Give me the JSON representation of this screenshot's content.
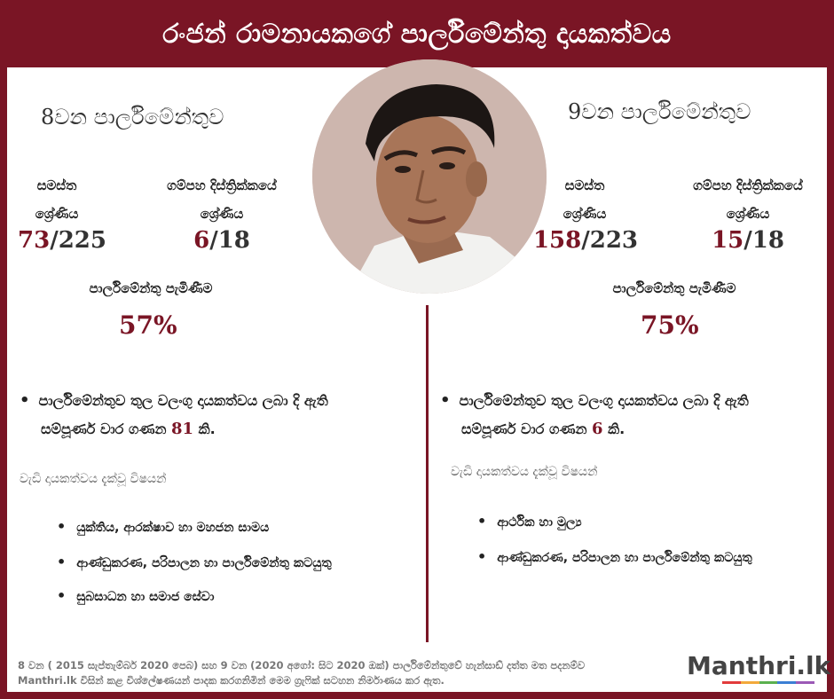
{
  "header": {
    "title": "රංජන් රාමනායකගේ පාර්ලිමේන්තු දායකත්වය"
  },
  "left": {
    "parliament": "8වන පාර්ලිමේන්තුව",
    "overall_label_1": "සමස්ත",
    "overall_label_2": "ශ්‍රේණිය",
    "overall_rank": "73",
    "overall_total": "/225",
    "district_label_1": "ගම්පහ දිස්ත්‍රික්කයේ",
    "district_label_2": "ශ්‍රේණිය",
    "district_rank": "6",
    "district_total": "/18",
    "attendance_label": "පාර්ලිමේන්තු පැමිණීම",
    "attendance": "57%",
    "contrib_text_1": "පාර්ලිමේන්තුව තුල වලංගු දායකත්වය ලබා දි ඇති",
    "contrib_text_2": "සම්පූර්ණ වාර ගණන",
    "contrib_count": "81",
    "contrib_suffix": "කි.",
    "topics_heading": "වැඩි දායකත්වය දැක්වූ විෂයන්",
    "topics": [
      "යුක්තිය, ආරක්ෂාව හා මහජන සාමය",
      "ආණ්ඩුකරණ, පරිපාලන හා පාර්ලිමේන්තු කටයුතු",
      "සුබසාධන හා සමාජ සේවා"
    ]
  },
  "right": {
    "parliament": "9වන පාර්ලිමේන්තුව",
    "overall_label_1": "සමස්ත",
    "overall_label_2": "ශ්‍රේණිය",
    "overall_rank": "158",
    "overall_total": "/223",
    "district_label_1": "ගම්පහ දිස්ත්‍රික්කයේ",
    "district_label_2": "ශ්‍රේණිය",
    "district_rank": "15",
    "district_total": "/18",
    "attendance_label": "පාර්ලිමේන්තු පැමිණීම",
    "attendance": "75%",
    "contrib_text_1": "පාර්ලිමේන්තුව තුල වලංගු දායකත්වය ලබා දි ඇති",
    "contrib_text_2": "සම්පූර්ණ වාර ගණන",
    "contrib_count": "6",
    "contrib_suffix": "කි.",
    "topics_heading": "වැඩි දායකත්වය දැක්වූ විෂයන්",
    "topics": [
      "ආර්ථික හා මුල්‍ය",
      "ආණ්ඩුකරණ, පරිපාලන හා පාර්ලිමේන්තු කටයුතු"
    ]
  },
  "footer": {
    "line1": "8 වන ( 2015 සැප්තැම්බර් 2020 පෙබ) සහ 9 වන (2020 අගෝ: සිට 2020 ඔක්) පාර්ලිමේන්තුවේ හැන්සාඩ් දත්ත මත පදනම්ව",
    "line2": "Manthri.lk විසින් කළ විශ්ලේෂණයන් පාදක කරගනිමින් මෙම ග්‍රැෆික් සටහන නිර්මාණය කර ඇත.",
    "logo": "Manthri.lk"
  },
  "colors": {
    "brand": "#7a1525"
  }
}
